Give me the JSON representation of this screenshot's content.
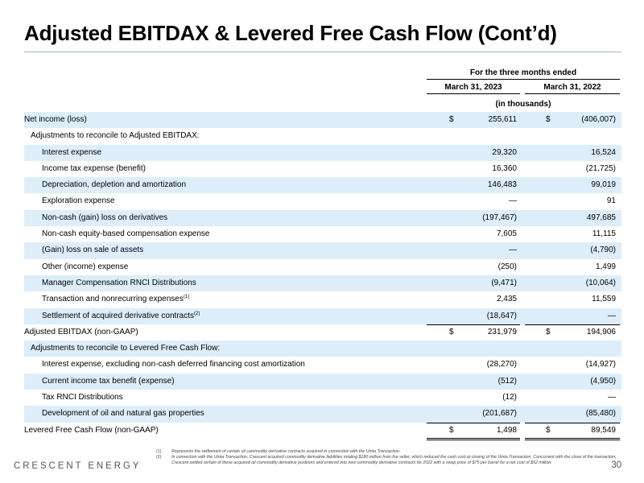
{
  "title": "Adjusted EBITDAX & Levered Free Cash Flow (Cont’d)",
  "header": {
    "period_label": "For the three months ended",
    "col1": "March 31, 2023",
    "col2": "March 31, 2022",
    "units": "(in thousands)"
  },
  "rows": [
    {
      "label": "Net income (loss)",
      "sup": "",
      "dollar": true,
      "c1": "255,611",
      "c2": "(406,007)"
    },
    {
      "label": "Adjustments to reconcile to Adjusted EBITDAX:",
      "sup": "",
      "dollar": false,
      "c1": "",
      "c2": ""
    },
    {
      "label": "Interest expense",
      "sup": "",
      "dollar": false,
      "c1": "29,320",
      "c2": "16,524"
    },
    {
      "label": "Income tax expense (benefit)",
      "sup": "",
      "dollar": false,
      "c1": "16,360",
      "c2": "(21,725)"
    },
    {
      "label": "Depreciation, depletion and amortization",
      "sup": "",
      "dollar": false,
      "c1": "146,483",
      "c2": "99,019"
    },
    {
      "label": "Exploration expense",
      "sup": "",
      "dollar": false,
      "c1": "—",
      "c2": "91"
    },
    {
      "label": "Non-cash (gain) loss on derivatives",
      "sup": "",
      "dollar": false,
      "c1": "(197,467)",
      "c2": "497,685"
    },
    {
      "label": "Non-cash equity-based compensation expense",
      "sup": "",
      "dollar": false,
      "c1": "7,605",
      "c2": "11,115"
    },
    {
      "label": "(Gain) loss on sale of assets",
      "sup": "",
      "dollar": false,
      "c1": "—",
      "c2": "(4,790)"
    },
    {
      "label": "Other (income) expense",
      "sup": "",
      "dollar": false,
      "c1": "(250)",
      "c2": "1,499"
    },
    {
      "label": "Manager Compensation RNCI Distributions",
      "sup": "",
      "dollar": false,
      "c1": "(9,471)",
      "c2": "(10,064)"
    },
    {
      "label": "Transaction and nonrecurring expenses",
      "sup": "(1)",
      "dollar": false,
      "c1": "2,435",
      "c2": "11,559"
    },
    {
      "label": "Settlement of acquired derivative contracts",
      "sup": "(2)",
      "dollar": false,
      "c1": "(18,647)",
      "c2": "—"
    },
    {
      "label": "Adjusted EBITDAX (non-GAAP)",
      "sup": "",
      "dollar": true,
      "c1": "231,979",
      "c2": "194,906"
    },
    {
      "label": "Adjustments to reconcile to Levered Free Cash Flow:",
      "sup": "",
      "dollar": false,
      "c1": "",
      "c2": ""
    },
    {
      "label": "Interest expense, excluding non-cash deferred financing cost amortization",
      "sup": "",
      "dollar": false,
      "c1": "(28,270)",
      "c2": "(14,927)"
    },
    {
      "label": "Current income tax benefit (expense)",
      "sup": "",
      "dollar": false,
      "c1": "(512)",
      "c2": "(4,950)"
    },
    {
      "label": "Tax RNCI Distributions",
      "sup": "",
      "dollar": false,
      "c1": "(12)",
      "c2": "—"
    },
    {
      "label": "Development of oil and natural gas properties",
      "sup": "",
      "dollar": false,
      "c1": "(201,687)",
      "c2": "(85,480)"
    },
    {
      "label": "Levered Free Cash Flow (non-GAAP)",
      "sup": "",
      "dollar": true,
      "c1": "1,498",
      "c2": "89,549"
    }
  ],
  "currency_symbol": "$",
  "footnotes": [
    {
      "num": "(1)",
      "text": "Represents the settlement of certain oil commodity derivative contracts acquired in connection with the Uinta Transaction."
    },
    {
      "num": "(2)",
      "text": "In connection with the Uinta Transaction, Crescent acquired commodity derivative liabilities totaling $180 million from the seller, which reduced the cash cost at closing of the Uinta Transaction. Concurrent with the close of the transaction, Crescent settled certain of these acquired oil commodity derivative positions and entered into new commodity derivative contracts for 2022 with a swap price of $75 per barrel for a net cost of $52 million."
    }
  ],
  "brand": "CRESCENT ENERGY",
  "page_number": "30"
}
